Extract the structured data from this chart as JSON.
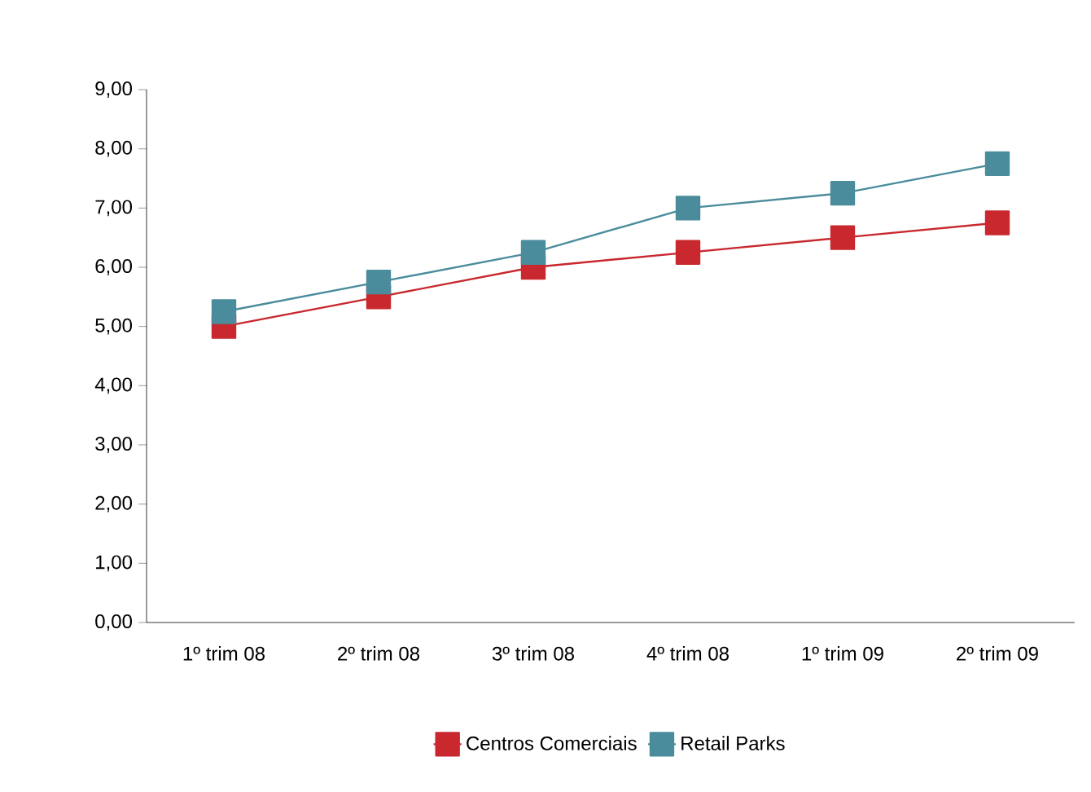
{
  "chart_data": {
    "type": "line",
    "categories": [
      "1º trim 08",
      "2º trim 08",
      "3º trim 08",
      "4º trim 08",
      "1º trim 09",
      "2º trim 09"
    ],
    "series": [
      {
        "name": "Centros Comerciais",
        "color": "#c8282e",
        "values": [
          5.0,
          5.5,
          6.0,
          6.25,
          6.5,
          6.75
        ]
      },
      {
        "name": "Retail Parks",
        "color": "#4a8c9c",
        "values": [
          5.25,
          5.75,
          6.25,
          7.0,
          7.25,
          7.75
        ]
      }
    ],
    "ylim": [
      0,
      9
    ],
    "yticks": [
      {
        "value": 0,
        "label": "0,00"
      },
      {
        "value": 1,
        "label": "1,00"
      },
      {
        "value": 2,
        "label": "2,00"
      },
      {
        "value": 3,
        "label": "3,00"
      },
      {
        "value": 4,
        "label": "4,00"
      },
      {
        "value": 5,
        "label": "5,00"
      },
      {
        "value": 6,
        "label": "6,00"
      },
      {
        "value": 7,
        "label": "7,00"
      },
      {
        "value": 8,
        "label": "8,00"
      },
      {
        "value": 9,
        "label": "9,00"
      }
    ],
    "marker": "square",
    "line_style": "solid",
    "legend": "bottom",
    "grid": false
  }
}
